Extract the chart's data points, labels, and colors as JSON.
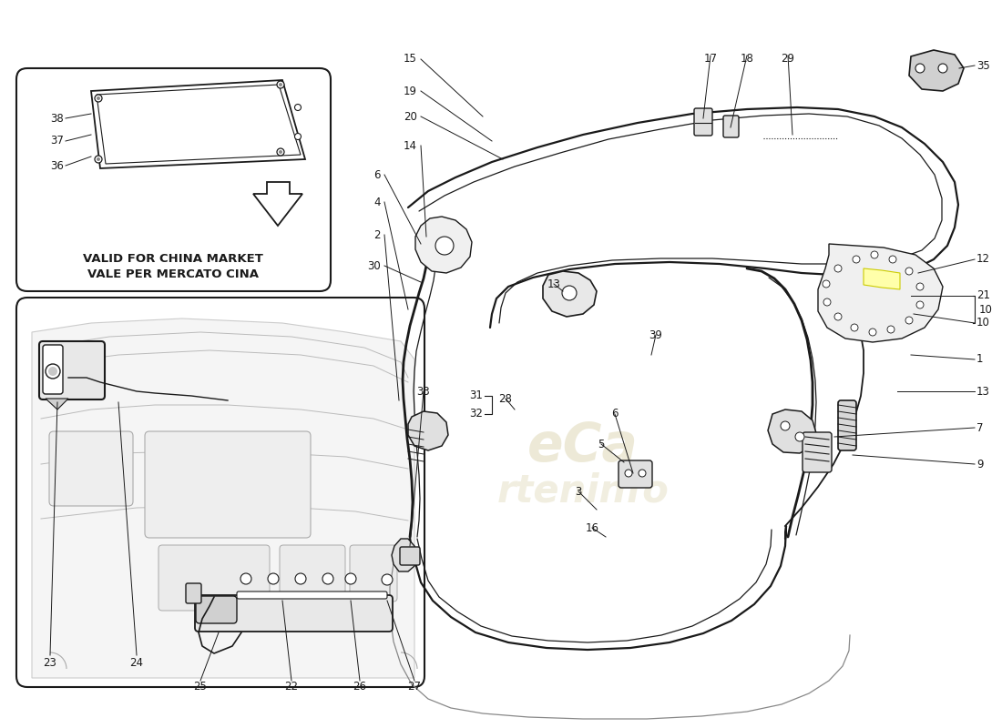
{
  "background_color": "#ffffff",
  "line_color": "#1a1a1a",
  "gray_line": "#888888",
  "light_gray_fill": "#f0f0f0",
  "very_light_gray": "#e8e8e8",
  "bg_gray": "#d8d8d8",
  "yellow_fill": "#ffffaa",
  "yellow_edge": "#cccc00",
  "watermark_color": "#d8d880",
  "bold_text1": "VALE PER MERCATO CINA",
  "bold_text2": "VALID FOR CHINA MARKET",
  "figsize": [
    11.0,
    8.0
  ],
  "dpi": 100
}
